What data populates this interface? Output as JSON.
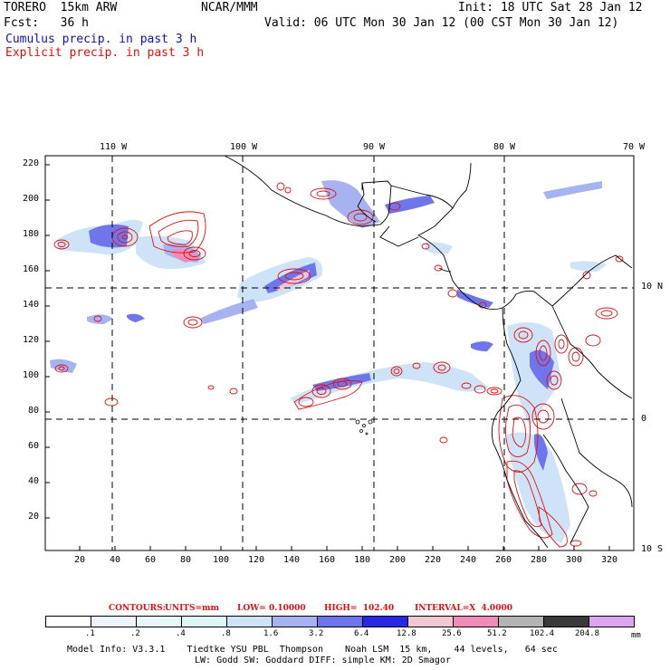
{
  "header": {
    "model": "TORERO  15km ARW",
    "org": "NCAR/MMM",
    "init": "Init: 18 UTC Sat 28 Jan 12",
    "fcst": "Fcst:   36 h",
    "valid": "Valid: 06 UTC Mon 30 Jan 12 (00 CST Mon 30 Jan 12)",
    "legend_cumulus": "Cumulus precip. in past 3 h",
    "legend_explicit": "Explicit precip. in past 3 h"
  },
  "axes": {
    "top_lon": [
      "110 W",
      "100 W",
      "90 W",
      "80 W",
      "70 W"
    ],
    "right_lat": [
      "10 N",
      "0",
      "10 S"
    ],
    "left_ticks": [
      "220",
      "200",
      "180",
      "160",
      "140",
      "120",
      "100",
      "80",
      "60",
      "40",
      "20"
    ],
    "bottom_ticks": [
      "20",
      "40",
      "60",
      "80",
      "100",
      "120",
      "140",
      "160",
      "180",
      "200",
      "220",
      "240",
      "260",
      "280",
      "300",
      "320"
    ]
  },
  "contours_info": {
    "label": "CONTOURS:",
    "units": "UNITS=mm",
    "low": "LOW= 0.10000",
    "high": "HIGH=  102.40",
    "interval": "INTERVAL=X  4.0000"
  },
  "colorbar": {
    "labels": [
      ".1",
      ".2",
      ".4",
      ".8",
      "1.6",
      "3.2",
      "6.4",
      "12.8",
      "25.6",
      "51.2",
      "102.4",
      "204.8"
    ],
    "unit": "mm",
    "colors": [
      "#ffffff",
      "#eef4fb",
      "#e6f6f9",
      "#dff6f6",
      "#cfe3f8",
      "#a6b3f0",
      "#6f76ec",
      "#2828e4",
      "#f3c6d4",
      "#ef8cb8",
      "#b4b4b4",
      "#3a3a3a",
      "#dda4f2"
    ]
  },
  "footer": {
    "line1": "Model Info: V3.3.1    Tiedtke YSU PBL  Thompson    Noah LSM  15 km,    44 levels,   64 sec",
    "line2": "LW: Godd SW: Goddard DIFF: simple KM: 2D Smagor"
  }
}
